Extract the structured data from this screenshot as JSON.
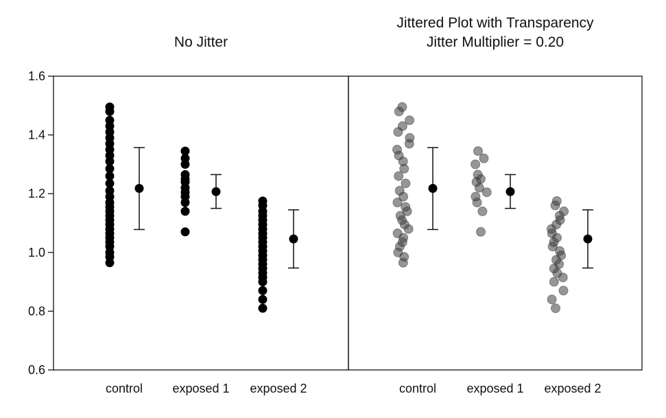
{
  "chart_data": [
    {
      "type": "scatter",
      "title": "No Jitter",
      "subtitle": "",
      "xlabel": "",
      "ylabel": "",
      "categories": [
        "control",
        "exposed 1",
        "exposed 2"
      ],
      "ylim": [
        0.6,
        1.6
      ],
      "yticks": [
        "0.6",
        "0.8",
        "1.0",
        "1.2",
        "1.4",
        "1.6"
      ],
      "grid": false,
      "jitter": false,
      "point_color": "#000000",
      "point_opacity": 1.0,
      "points": [
        [
          0.965,
          0.985,
          1.0,
          1.02,
          1.035,
          1.05,
          1.065,
          1.08,
          1.095,
          1.11,
          1.125,
          1.14,
          1.155,
          1.17,
          1.19,
          1.21,
          1.235,
          1.26,
          1.285,
          1.31,
          1.33,
          1.35,
          1.37,
          1.39,
          1.41,
          1.43,
          1.45,
          1.48,
          1.495
        ],
        [
          1.07,
          1.14,
          1.17,
          1.19,
          1.205,
          1.22,
          1.24,
          1.25,
          1.265,
          1.3,
          1.32,
          1.345
        ],
        [
          0.81,
          0.84,
          0.87,
          0.9,
          0.915,
          0.93,
          0.945,
          0.96,
          0.975,
          0.99,
          1.005,
          1.02,
          1.035,
          1.05,
          1.065,
          1.08,
          1.095,
          1.11,
          1.125,
          1.14,
          1.16,
          1.175
        ]
      ],
      "summary": [
        {
          "mean": 1.218,
          "low": 1.078,
          "high": 1.357
        },
        {
          "mean": 1.207,
          "low": 1.15,
          "high": 1.265
        },
        {
          "mean": 1.046,
          "low": 0.947,
          "high": 1.145
        }
      ]
    },
    {
      "type": "scatter",
      "title": "Jittered Plot with Transparency",
      "subtitle": "Jitter Multiplier = 0.20",
      "xlabel": "",
      "ylabel": "",
      "categories": [
        "control",
        "exposed 1",
        "exposed 2"
      ],
      "ylim": [
        0.6,
        1.6
      ],
      "grid": false,
      "jitter": true,
      "jitter_multiplier": 0.2,
      "point_color": "#404040",
      "point_opacity": 0.55,
      "points": [
        [
          0.965,
          0.985,
          1.0,
          1.02,
          1.035,
          1.05,
          1.065,
          1.08,
          1.095,
          1.11,
          1.125,
          1.14,
          1.155,
          1.17,
          1.19,
          1.21,
          1.235,
          1.26,
          1.285,
          1.31,
          1.33,
          1.35,
          1.37,
          1.39,
          1.41,
          1.43,
          1.45,
          1.48,
          1.495
        ],
        [
          1.07,
          1.14,
          1.17,
          1.19,
          1.205,
          1.22,
          1.24,
          1.25,
          1.265,
          1.3,
          1.32,
          1.345
        ],
        [
          0.81,
          0.84,
          0.87,
          0.9,
          0.915,
          0.93,
          0.945,
          0.96,
          0.975,
          0.99,
          1.005,
          1.02,
          1.035,
          1.05,
          1.065,
          1.08,
          1.095,
          1.11,
          1.125,
          1.14,
          1.16,
          1.175
        ]
      ],
      "summary": [
        {
          "mean": 1.218,
          "low": 1.078,
          "high": 1.357
        },
        {
          "mean": 1.207,
          "low": 1.15,
          "high": 1.265
        },
        {
          "mean": 1.046,
          "low": 0.947,
          "high": 1.145
        }
      ]
    }
  ]
}
